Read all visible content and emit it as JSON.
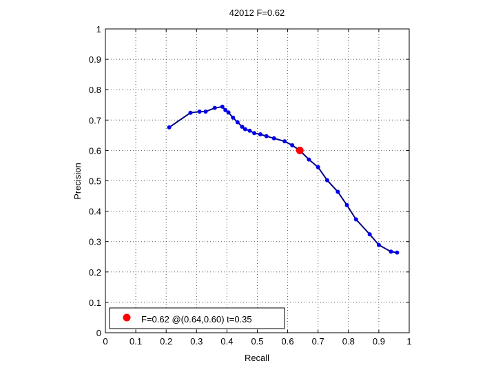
{
  "chart_data": {
    "type": "line",
    "title": "42012 F=0.62",
    "xlabel": "Recall",
    "ylabel": "Precision",
    "xlim": [
      0,
      1
    ],
    "ylim": [
      0,
      1
    ],
    "grid": true,
    "x_ticks": [
      "0",
      "0.1",
      "0.2",
      "0.3",
      "0.4",
      "0.5",
      "0.6",
      "0.7",
      "0.8",
      "0.9",
      "1"
    ],
    "y_ticks": [
      "0",
      "0.1",
      "0.2",
      "0.3",
      "0.4",
      "0.5",
      "0.6",
      "0.7",
      "0.8",
      "0.9",
      "1"
    ],
    "series": [
      {
        "color": "#0000ee",
        "line_color": "#000080",
        "x": [
          0.21,
          0.28,
          0.31,
          0.33,
          0.36,
          0.385,
          0.395,
          0.405,
          0.42,
          0.435,
          0.45,
          0.46,
          0.475,
          0.49,
          0.51,
          0.53,
          0.555,
          0.59,
          0.615,
          0.64,
          0.67,
          0.7,
          0.73,
          0.765,
          0.795,
          0.825,
          0.87,
          0.9,
          0.94,
          0.96
        ],
        "y": [
          0.676,
          0.724,
          0.728,
          0.728,
          0.74,
          0.744,
          0.733,
          0.725,
          0.708,
          0.693,
          0.678,
          0.67,
          0.665,
          0.657,
          0.653,
          0.647,
          0.64,
          0.63,
          0.617,
          0.6,
          0.57,
          0.545,
          0.502,
          0.464,
          0.42,
          0.373,
          0.324,
          0.289,
          0.267,
          0.264
        ]
      }
    ],
    "highlight_point": {
      "x": 0.64,
      "y": 0.6,
      "color": "#ff0000"
    },
    "legend": {
      "position": "bottom-left",
      "text": "F=0.62 @(0.64,0.60) t=0.35"
    }
  }
}
